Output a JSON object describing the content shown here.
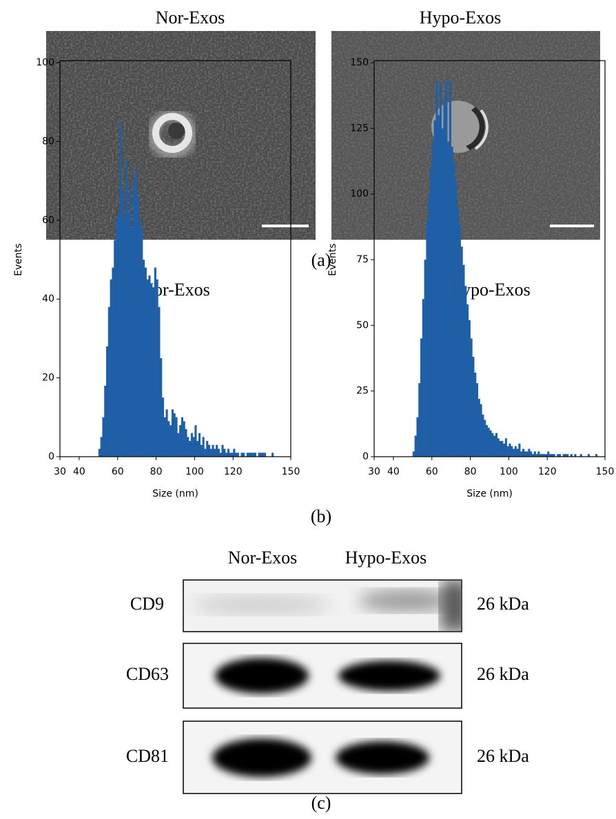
{
  "tem": {
    "titles": [
      "Nor-Exos",
      "Hypo-Exos"
    ],
    "label": "(a)"
  },
  "chart_data": [
    {
      "type": "histogram",
      "title": "Nor-Exos",
      "xlabel": "Size (nm)",
      "ylabel": "Events",
      "color": "#1f5fa6",
      "bins": [
        30,
        31,
        32,
        33,
        34,
        35,
        36,
        37,
        38,
        39,
        40,
        41,
        42,
        43,
        44,
        45,
        46,
        47,
        48,
        49,
        50,
        51,
        52,
        53,
        54,
        55,
        56,
        57,
        58,
        59,
        60,
        61,
        62,
        63,
        64,
        65,
        66,
        67,
        68,
        69,
        70,
        71,
        72,
        73,
        74,
        75,
        76,
        77,
        78,
        79,
        80,
        81,
        82,
        83,
        84,
        85,
        86,
        87,
        88,
        89,
        90,
        91,
        92,
        93,
        94,
        95,
        96,
        97,
        98,
        99,
        100,
        101,
        102,
        103,
        104,
        105,
        106,
        107,
        108,
        109,
        110,
        111,
        112,
        113,
        114,
        115,
        116,
        117,
        118,
        119,
        120,
        121,
        122,
        123,
        124,
        125,
        126,
        127,
        128,
        129,
        130,
        131,
        132,
        133,
        134,
        135,
        136,
        137,
        138,
        139,
        140,
        141,
        142,
        143,
        144,
        145,
        146,
        147,
        148,
        149,
        150
      ],
      "counts": [
        0,
        0,
        0,
        0,
        0,
        0,
        0,
        0,
        0,
        0,
        0,
        0,
        0,
        0,
        0,
        0,
        0,
        0,
        0,
        0,
        2,
        5,
        10,
        18,
        28,
        38,
        45,
        48,
        55,
        60,
        62,
        85,
        68,
        60,
        75,
        62,
        68,
        58,
        70,
        73,
        66,
        60,
        58,
        50,
        48,
        45,
        46,
        44,
        43,
        48,
        45,
        38,
        25,
        15,
        10,
        12,
        9,
        8,
        12,
        11,
        10,
        6,
        8,
        10,
        9,
        7,
        5,
        4,
        6,
        5,
        8,
        4,
        6,
        3,
        5,
        2,
        4,
        3,
        2,
        3,
        2,
        3,
        2,
        1,
        3,
        2,
        1,
        2,
        1,
        1,
        2,
        1,
        1,
        0,
        1,
        1,
        0,
        1,
        1,
        1,
        1,
        1,
        0,
        1,
        1,
        1,
        1,
        0,
        0,
        0,
        1,
        0,
        0,
        0,
        0,
        0,
        0,
        0,
        0,
        0
      ],
      "xlim": [
        30,
        150
      ],
      "ylim": [
        0,
        100
      ],
      "xticks": [
        30,
        40,
        60,
        80,
        100,
        120,
        150
      ],
      "yticks": [
        0,
        20,
        40,
        60,
        80,
        100
      ]
    },
    {
      "type": "histogram",
      "title": "Hypo-Exos",
      "xlabel": "Size (nm)",
      "ylabel": "Events",
      "color": "#1f5fa6",
      "bins": [
        30,
        31,
        32,
        33,
        34,
        35,
        36,
        37,
        38,
        39,
        40,
        41,
        42,
        43,
        44,
        45,
        46,
        47,
        48,
        49,
        50,
        51,
        52,
        53,
        54,
        55,
        56,
        57,
        58,
        59,
        60,
        61,
        62,
        63,
        64,
        65,
        66,
        67,
        68,
        69,
        70,
        71,
        72,
        73,
        74,
        75,
        76,
        77,
        78,
        79,
        80,
        81,
        82,
        83,
        84,
        85,
        86,
        87,
        88,
        89,
        90,
        91,
        92,
        93,
        94,
        95,
        96,
        97,
        98,
        99,
        100,
        101,
        102,
        103,
        104,
        105,
        106,
        107,
        108,
        109,
        110,
        111,
        112,
        113,
        114,
        115,
        116,
        117,
        118,
        119,
        120,
        121,
        122,
        123,
        124,
        125,
        126,
        127,
        128,
        129,
        130,
        131,
        132,
        133,
        134,
        135,
        136,
        137,
        138,
        139,
        140,
        141,
        142,
        143,
        144,
        145,
        146,
        147,
        148,
        149,
        150
      ],
      "counts": [
        0,
        0,
        0,
        0,
        0,
        0,
        0,
        0,
        0,
        0,
        0,
        0,
        0,
        0,
        0,
        0,
        0,
        0,
        0,
        0,
        2,
        8,
        15,
        28,
        45,
        60,
        75,
        90,
        100,
        110,
        120,
        128,
        143,
        130,
        142,
        125,
        135,
        143,
        120,
        143,
        118,
        112,
        105,
        95,
        88,
        80,
        73,
        65,
        58,
        52,
        45,
        38,
        32,
        28,
        22,
        20,
        16,
        14,
        12,
        11,
        10,
        9,
        8,
        9,
        7,
        6,
        6,
        5,
        7,
        4,
        5,
        4,
        3,
        4,
        3,
        5,
        2,
        3,
        2,
        2,
        3,
        2,
        1,
        2,
        1,
        2,
        1,
        1,
        1,
        1,
        2,
        1,
        1,
        1,
        0,
        1,
        1,
        0,
        1,
        1,
        1,
        0,
        1,
        0,
        1,
        0,
        0,
        1,
        0,
        0,
        0,
        1,
        0,
        0,
        0,
        1,
        0,
        0,
        0,
        0
      ],
      "xlim": [
        30,
        150
      ],
      "ylim": [
        0,
        150
      ],
      "xticks": [
        30,
        40,
        60,
        80,
        100,
        120,
        150
      ],
      "yticks": [
        0,
        25,
        50,
        75,
        100,
        125,
        150
      ]
    }
  ],
  "panel_b_label": "(b)",
  "blot": {
    "columns": [
      "Nor-Exos",
      "Hypo-Exos"
    ],
    "rows": [
      {
        "protein": "CD9",
        "size": "26 kDa"
      },
      {
        "protein": "CD63",
        "size": "26 kDa"
      },
      {
        "protein": "CD81",
        "size": "26 kDa"
      }
    ],
    "label": "(c)"
  }
}
